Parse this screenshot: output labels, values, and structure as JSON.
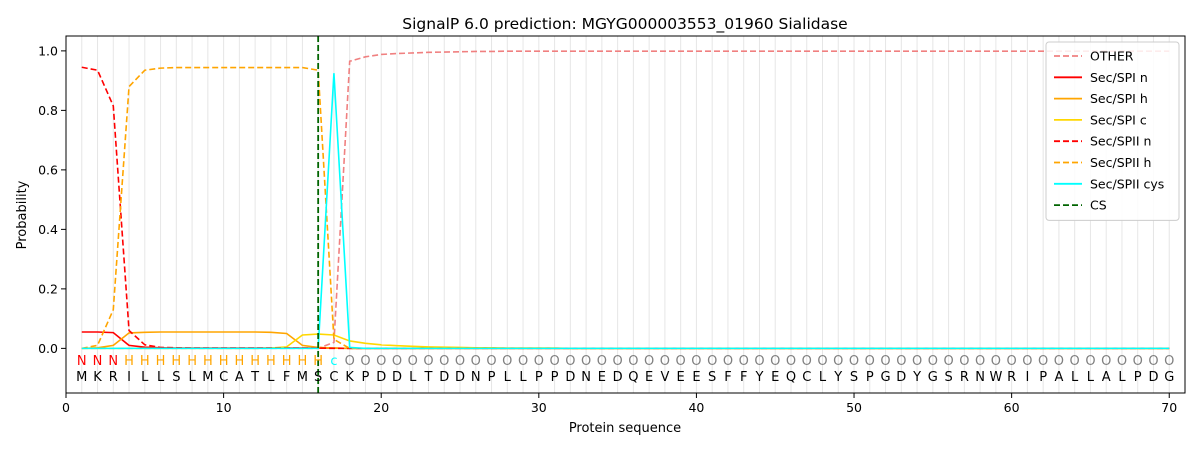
{
  "chart_data": {
    "type": "line",
    "title": "SignalP 6.0 prediction: MGYG000003553_01960 Sialidase",
    "xlabel": "Protein sequence",
    "ylabel": "Probability",
    "xlim": [
      0,
      71
    ],
    "ylim": [
      -0.15,
      1.05
    ],
    "xticks": [
      0,
      10,
      20,
      30,
      40,
      50,
      60,
      70
    ],
    "yticks": [
      0.0,
      0.2,
      0.4,
      0.6,
      0.8,
      1.0
    ],
    "ytick_labels": [
      "0.0",
      "0.2",
      "0.4",
      "0.6",
      "0.8",
      "1.0"
    ],
    "legend_position": "top-right",
    "sequence": [
      "M",
      "K",
      "R",
      "I",
      "L",
      "L",
      "S",
      "L",
      "M",
      "C",
      "A",
      "T",
      "L",
      "F",
      "M",
      "S",
      "C",
      "K",
      "P",
      "D",
      "D",
      "L",
      "T",
      "D",
      "D",
      "N",
      "P",
      "L",
      "L",
      "P",
      "P",
      "D",
      "N",
      "E",
      "D",
      "Q",
      "E",
      "V",
      "E",
      "E",
      "S",
      "F",
      "F",
      "Y",
      "E",
      "Q",
      "C",
      "L",
      "Y",
      "S",
      "P",
      "G",
      "D",
      "Y",
      "G",
      "S",
      "R",
      "N",
      "W",
      "R",
      "I",
      "P",
      "A",
      "L",
      "L",
      "A",
      "L",
      "P",
      "D",
      "G"
    ],
    "labels": [
      "N",
      "N",
      "N",
      "H",
      "H",
      "H",
      "H",
      "H",
      "H",
      "H",
      "H",
      "H",
      "H",
      "H",
      "H",
      "H",
      "C",
      "O",
      "O",
      "O",
      "O",
      "O",
      "O",
      "O",
      "O",
      "O",
      "O",
      "O",
      "O",
      "O",
      "O",
      "O",
      "O",
      "O",
      "O",
      "O",
      "O",
      "O",
      "O",
      "O",
      "O",
      "O",
      "O",
      "O",
      "O",
      "O",
      "O",
      "O",
      "O",
      "O",
      "O",
      "O",
      "O",
      "O",
      "O",
      "O",
      "O",
      "O",
      "O",
      "O",
      "O",
      "O",
      "O",
      "O",
      "O",
      "O",
      "O",
      "O",
      "O",
      "O"
    ],
    "label_colors": {
      "N": "#ff0000",
      "H": "#ffa500",
      "C": "#00ffff",
      "O": "#808080"
    },
    "cs_position": 16,
    "series": [
      {
        "name": "OTHER",
        "color": "#f08080",
        "dash": true,
        "values": [
          0.0,
          0.0,
          0.0,
          0.0,
          0.0,
          0.0,
          0.0,
          0.0,
          0.0,
          0.0,
          0.0,
          0.0,
          0.0,
          0.0,
          0.0,
          0.0,
          0.02,
          0.965,
          0.98,
          0.988,
          0.991,
          0.993,
          0.995,
          0.996,
          0.997,
          0.998,
          0.998,
          0.999,
          0.999,
          0.999,
          0.999,
          0.999,
          0.999,
          0.999,
          0.999,
          0.999,
          0.999,
          0.999,
          0.999,
          0.999,
          0.999,
          0.999,
          0.999,
          0.999,
          0.999,
          0.999,
          0.999,
          0.999,
          0.999,
          0.999,
          0.999,
          0.999,
          0.999,
          0.999,
          0.999,
          0.999,
          0.999,
          0.999,
          0.999,
          0.999,
          0.999,
          0.999,
          0.999,
          0.999,
          0.999,
          0.999,
          0.999,
          0.999,
          0.999,
          0.999
        ]
      },
      {
        "name": "Sec/SPI n",
        "color": "#ff0000",
        "dash": false,
        "values": [
          0.055,
          0.055,
          0.053,
          0.01,
          0.004,
          0.002,
          0.001,
          0.001,
          0.001,
          0.001,
          0.001,
          0.001,
          0.001,
          0.001,
          0.001,
          0.001,
          0.001,
          0.0,
          0.0,
          0.0,
          0.0,
          0.0,
          0.0,
          0.0,
          0.0,
          0.0,
          0.0,
          0.0,
          0.0,
          0.0,
          0.0,
          0.0,
          0.0,
          0.0,
          0.0,
          0.0,
          0.0,
          0.0,
          0.0,
          0.0,
          0.0,
          0.0,
          0.0,
          0.0,
          0.0,
          0.0,
          0.0,
          0.0,
          0.0,
          0.0,
          0.0,
          0.0,
          0.0,
          0.0,
          0.0,
          0.0,
          0.0,
          0.0,
          0.0,
          0.0,
          0.0,
          0.0,
          0.0,
          0.0,
          0.0,
          0.0,
          0.0,
          0.0,
          0.0,
          0.0
        ]
      },
      {
        "name": "Sec/SPI h",
        "color": "#ffa500",
        "dash": false,
        "values": [
          0.0,
          0.002,
          0.01,
          0.052,
          0.054,
          0.055,
          0.055,
          0.055,
          0.055,
          0.055,
          0.055,
          0.055,
          0.054,
          0.05,
          0.01,
          0.003,
          0.001,
          0.0,
          0.0,
          0.0,
          0.0,
          0.0,
          0.0,
          0.0,
          0.0,
          0.0,
          0.0,
          0.0,
          0.0,
          0.0,
          0.0,
          0.0,
          0.0,
          0.0,
          0.0,
          0.0,
          0.0,
          0.0,
          0.0,
          0.0,
          0.0,
          0.0,
          0.0,
          0.0,
          0.0,
          0.0,
          0.0,
          0.0,
          0.0,
          0.0,
          0.0,
          0.0,
          0.0,
          0.0,
          0.0,
          0.0,
          0.0,
          0.0,
          0.0,
          0.0,
          0.0,
          0.0,
          0.0,
          0.0,
          0.0,
          0.0,
          0.0,
          0.0,
          0.0,
          0.0
        ]
      },
      {
        "name": "Sec/SPI c",
        "color": "#ffd700",
        "dash": false,
        "values": [
          0.0,
          0.0,
          0.0,
          0.0,
          0.0,
          0.0,
          0.0,
          0.0,
          0.0,
          0.0,
          0.0,
          0.0,
          0.001,
          0.005,
          0.045,
          0.048,
          0.045,
          0.025,
          0.017,
          0.012,
          0.009,
          0.007,
          0.005,
          0.004,
          0.003,
          0.002,
          0.002,
          0.001,
          0.001,
          0.001,
          0.001,
          0.0,
          0.0,
          0.0,
          0.0,
          0.0,
          0.0,
          0.0,
          0.0,
          0.0,
          0.0,
          0.0,
          0.0,
          0.0,
          0.0,
          0.0,
          0.0,
          0.0,
          0.0,
          0.0,
          0.0,
          0.0,
          0.0,
          0.0,
          0.0,
          0.0,
          0.0,
          0.0,
          0.0,
          0.0,
          0.0,
          0.0,
          0.0,
          0.0,
          0.0,
          0.0,
          0.0,
          0.0,
          0.0,
          0.0
        ]
      },
      {
        "name": "Sec/SPII n",
        "color": "#ff0000",
        "dash": true,
        "values": [
          0.945,
          0.935,
          0.815,
          0.06,
          0.012,
          0.003,
          0.002,
          0.001,
          0.001,
          0.001,
          0.001,
          0.001,
          0.001,
          0.001,
          0.001,
          0.001,
          0.0,
          0.0,
          0.0,
          0.0,
          0.0,
          0.0,
          0.0,
          0.0,
          0.0,
          0.0,
          0.0,
          0.0,
          0.0,
          0.0,
          0.0,
          0.0,
          0.0,
          0.0,
          0.0,
          0.0,
          0.0,
          0.0,
          0.0,
          0.0,
          0.0,
          0.0,
          0.0,
          0.0,
          0.0,
          0.0,
          0.0,
          0.0,
          0.0,
          0.0,
          0.0,
          0.0,
          0.0,
          0.0,
          0.0,
          0.0,
          0.0,
          0.0,
          0.0,
          0.0,
          0.0,
          0.0,
          0.0,
          0.0,
          0.0,
          0.0,
          0.0,
          0.0,
          0.0,
          0.0
        ]
      },
      {
        "name": "Sec/SPII h",
        "color": "#ffa500",
        "dash": true,
        "values": [
          0.0,
          0.01,
          0.13,
          0.88,
          0.935,
          0.942,
          0.944,
          0.944,
          0.944,
          0.944,
          0.944,
          0.944,
          0.944,
          0.944,
          0.944,
          0.935,
          0.03,
          0.0,
          0.0,
          0.0,
          0.0,
          0.0,
          0.0,
          0.0,
          0.0,
          0.0,
          0.0,
          0.0,
          0.0,
          0.0,
          0.0,
          0.0,
          0.0,
          0.0,
          0.0,
          0.0,
          0.0,
          0.0,
          0.0,
          0.0,
          0.0,
          0.0,
          0.0,
          0.0,
          0.0,
          0.0,
          0.0,
          0.0,
          0.0,
          0.0,
          0.0,
          0.0,
          0.0,
          0.0,
          0.0,
          0.0,
          0.0,
          0.0,
          0.0,
          0.0,
          0.0,
          0.0,
          0.0,
          0.0,
          0.0,
          0.0,
          0.0,
          0.0,
          0.0,
          0.0
        ]
      },
      {
        "name": "Sec/SPII cys",
        "color": "#00ffff",
        "dash": false,
        "values": [
          0.0,
          0.0,
          0.0,
          0.0,
          0.0,
          0.0,
          0.0,
          0.0,
          0.0,
          0.0,
          0.0,
          0.0,
          0.0,
          0.0,
          0.0,
          0.0,
          0.925,
          0.003,
          0.0,
          0.0,
          0.0,
          0.0,
          0.0,
          0.0,
          0.0,
          0.0,
          0.0,
          0.0,
          0.0,
          0.0,
          0.0,
          0.0,
          0.0,
          0.0,
          0.0,
          0.0,
          0.0,
          0.0,
          0.0,
          0.0,
          0.0,
          0.0,
          0.0,
          0.0,
          0.0,
          0.0,
          0.0,
          0.0,
          0.0,
          0.0,
          0.0,
          0.0,
          0.0,
          0.0,
          0.0,
          0.0,
          0.0,
          0.0,
          0.0,
          0.0,
          0.0,
          0.0,
          0.0,
          0.0,
          0.0,
          0.0,
          0.0,
          0.0,
          0.0,
          0.0
        ]
      }
    ],
    "legend": [
      {
        "name": "OTHER",
        "color": "#f08080",
        "dash": true
      },
      {
        "name": "Sec/SPI n",
        "color": "#ff0000",
        "dash": false
      },
      {
        "name": "Sec/SPI h",
        "color": "#ffa500",
        "dash": false
      },
      {
        "name": "Sec/SPI c",
        "color": "#ffd700",
        "dash": false
      },
      {
        "name": "Sec/SPII n",
        "color": "#ff0000",
        "dash": true
      },
      {
        "name": "Sec/SPII h",
        "color": "#ffa500",
        "dash": true
      },
      {
        "name": "Sec/SPII cys",
        "color": "#00ffff",
        "dash": false
      },
      {
        "name": "CS",
        "color": "#006400",
        "dash": true
      }
    ]
  }
}
